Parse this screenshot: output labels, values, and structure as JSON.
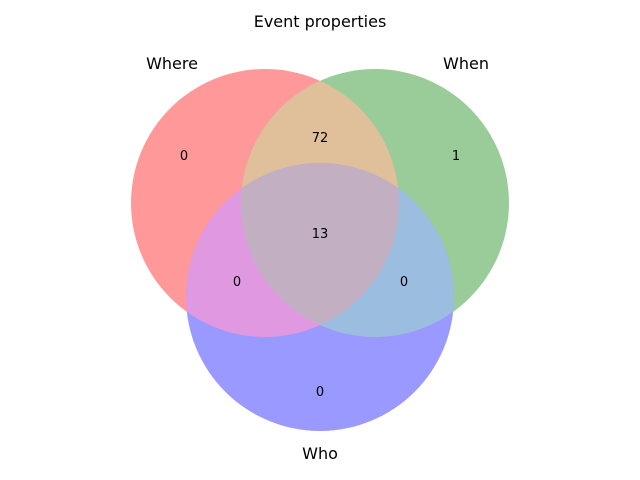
{
  "title": "Event properties",
  "sets": [
    {
      "id": "a",
      "label": "Where",
      "color": "#ff0000"
    },
    {
      "id": "b",
      "label": "When",
      "color": "#008000"
    },
    {
      "id": "c",
      "label": "Who",
      "color": "#0000ff"
    }
  ],
  "regions": {
    "a_only": "0",
    "b_only": "1",
    "c_only": "0",
    "ab": "72",
    "ac": "0",
    "bc": "0",
    "abc": "13"
  },
  "colors": {
    "overlap_ab": "#e0bf9b",
    "overlap_ac": "#e099e0",
    "overlap_bc": "#9bbde0",
    "overlap_abc": "#c2b0c2"
  }
}
